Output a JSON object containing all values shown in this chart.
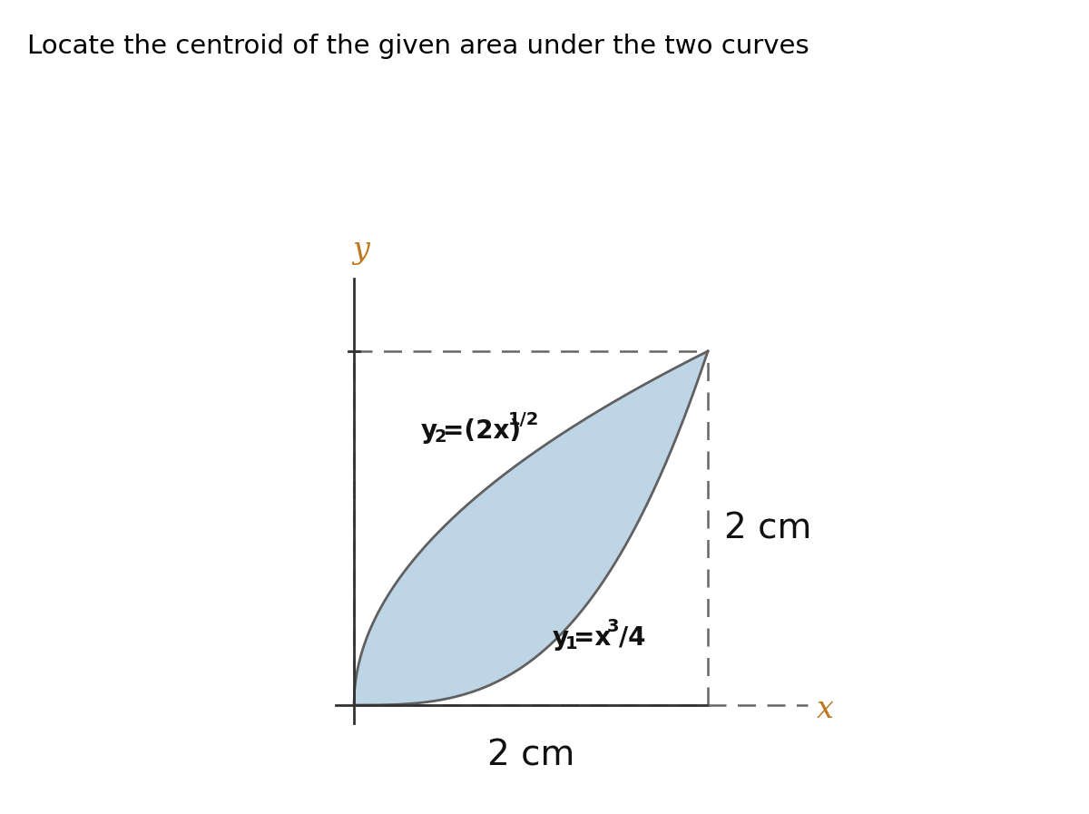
{
  "title": "Locate the centroid of the given area under the two curves",
  "title_fontsize": 21,
  "title_color": "#000000",
  "background_color": "#ffffff",
  "fill_color": "#a8c8de",
  "fill_alpha": 0.75,
  "curve_color": "#606060",
  "dashed_color": "#666666",
  "axis_color": "#c07830",
  "axis_line_color": "#555555",
  "x_range": [
    0,
    2
  ],
  "y_range": [
    0,
    2
  ],
  "label_2cm_bottom": "2 cm",
  "label_2cm_right": "2 cm",
  "label_x": "x",
  "label_y": "y"
}
